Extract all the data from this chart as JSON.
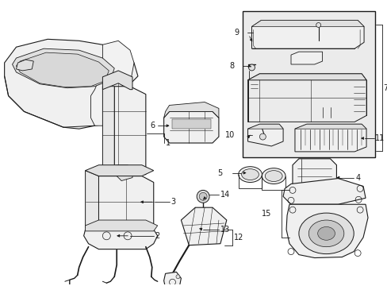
{
  "bg_color": "#ffffff",
  "line_color": "#1a1a1a",
  "fill_light": "#f0f0f0",
  "fill_mid": "#e0e0e0",
  "fill_dark": "#c8c8c8",
  "box_fill": "#ebebeb",
  "fig_width": 4.89,
  "fig_height": 3.6,
  "dpi": 100
}
